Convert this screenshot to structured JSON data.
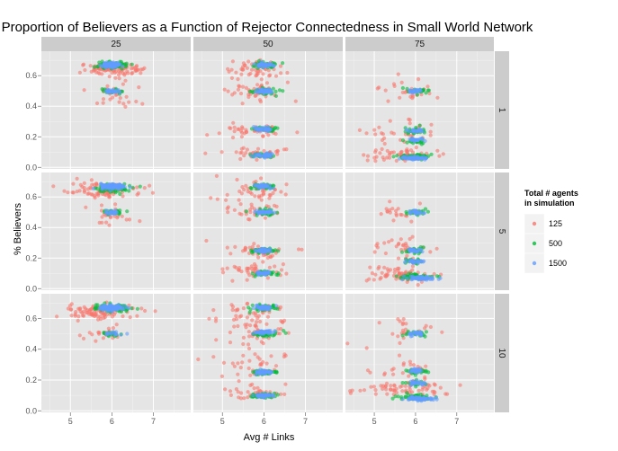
{
  "chart_data": {
    "type": "scatter",
    "title": "Proportion of Believers as a Function of Rejector Connectedness in Small World Network",
    "xlabel": "Avg # Links",
    "ylabel": "% Believers",
    "xlim": [
      4.3,
      7.9
    ],
    "ylim": [
      -0.01,
      0.76
    ],
    "x_ticks": [
      "5",
      "6",
      "7"
    ],
    "y_ticks": [
      "0.0",
      "0.2",
      "0.4",
      "0.6"
    ],
    "facet_columns": [
      "25",
      "50",
      "75"
    ],
    "facet_rows": [
      "1",
      "5",
      "10"
    ],
    "legend": {
      "title_line1": "Total # agents",
      "title_line2": "in simulation",
      "position": "right",
      "entries": [
        {
          "label": "125",
          "color": "#F8766D"
        },
        {
          "label": "500",
          "color": "#00BA38"
        },
        {
          "label": "1500",
          "color": "#619CFF"
        }
      ]
    },
    "panels": [
      {
        "col": "25",
        "row": "1",
        "clusters": [
          {
            "series": "125",
            "x": 6.0,
            "y": 0.64,
            "sx": 0.35,
            "sy": 0.02,
            "n": 90
          },
          {
            "series": "125",
            "x": 6.0,
            "y": 0.47,
            "sx": 0.25,
            "sy": 0.04,
            "n": 30
          },
          {
            "series": "500",
            "x": 6.0,
            "y": 0.67,
            "sx": 0.18,
            "sy": 0.012,
            "n": 80
          },
          {
            "series": "500",
            "x": 6.0,
            "y": 0.5,
            "sx": 0.15,
            "sy": 0.008,
            "n": 25
          },
          {
            "series": "1500",
            "x": 6.0,
            "y": 0.67,
            "sx": 0.12,
            "sy": 0.008,
            "n": 120
          },
          {
            "series": "1500",
            "x": 6.0,
            "y": 0.5,
            "sx": 0.12,
            "sy": 0.006,
            "n": 25
          }
        ]
      },
      {
        "col": "50",
        "row": "1",
        "clusters": [
          {
            "series": "125",
            "x": 5.8,
            "y": 0.64,
            "sx": 0.4,
            "sy": 0.03,
            "n": 50
          },
          {
            "series": "125",
            "x": 5.8,
            "y": 0.5,
            "sx": 0.4,
            "sy": 0.03,
            "n": 40
          },
          {
            "series": "125",
            "x": 5.8,
            "y": 0.24,
            "sx": 0.4,
            "sy": 0.02,
            "n": 40
          },
          {
            "series": "125",
            "x": 5.8,
            "y": 0.1,
            "sx": 0.4,
            "sy": 0.02,
            "n": 35
          },
          {
            "series": "500",
            "x": 6.0,
            "y": 0.67,
            "sx": 0.15,
            "sy": 0.01,
            "n": 40
          },
          {
            "series": "500",
            "x": 6.0,
            "y": 0.5,
            "sx": 0.15,
            "sy": 0.01,
            "n": 40
          },
          {
            "series": "500",
            "x": 6.0,
            "y": 0.25,
            "sx": 0.15,
            "sy": 0.008,
            "n": 40
          },
          {
            "series": "500",
            "x": 6.0,
            "y": 0.08,
            "sx": 0.15,
            "sy": 0.008,
            "n": 35
          },
          {
            "series": "1500",
            "x": 6.0,
            "y": 0.67,
            "sx": 0.1,
            "sy": 0.006,
            "n": 50
          },
          {
            "series": "1500",
            "x": 6.0,
            "y": 0.5,
            "sx": 0.1,
            "sy": 0.006,
            "n": 45
          },
          {
            "series": "1500",
            "x": 6.0,
            "y": 0.25,
            "sx": 0.1,
            "sy": 0.006,
            "n": 45
          },
          {
            "series": "1500",
            "x": 6.0,
            "y": 0.08,
            "sx": 0.1,
            "sy": 0.006,
            "n": 40
          }
        ]
      },
      {
        "col": "75",
        "row": "1",
        "clusters": [
          {
            "series": "125",
            "x": 5.7,
            "y": 0.5,
            "sx": 0.4,
            "sy": 0.04,
            "n": 25
          },
          {
            "series": "125",
            "x": 5.7,
            "y": 0.22,
            "sx": 0.4,
            "sy": 0.04,
            "n": 30
          },
          {
            "series": "125",
            "x": 5.7,
            "y": 0.08,
            "sx": 0.45,
            "sy": 0.02,
            "n": 50
          },
          {
            "series": "500",
            "x": 6.0,
            "y": 0.5,
            "sx": 0.15,
            "sy": 0.01,
            "n": 20
          },
          {
            "series": "500",
            "x": 6.0,
            "y": 0.24,
            "sx": 0.15,
            "sy": 0.01,
            "n": 25
          },
          {
            "series": "500",
            "x": 6.0,
            "y": 0.17,
            "sx": 0.15,
            "sy": 0.01,
            "n": 20
          },
          {
            "series": "500",
            "x": 6.0,
            "y": 0.07,
            "sx": 0.2,
            "sy": 0.008,
            "n": 50
          },
          {
            "series": "1500",
            "x": 6.0,
            "y": 0.5,
            "sx": 0.1,
            "sy": 0.006,
            "n": 25
          },
          {
            "series": "1500",
            "x": 6.0,
            "y": 0.24,
            "sx": 0.1,
            "sy": 0.006,
            "n": 25
          },
          {
            "series": "1500",
            "x": 6.0,
            "y": 0.18,
            "sx": 0.1,
            "sy": 0.006,
            "n": 25
          },
          {
            "series": "1500",
            "x": 6.0,
            "y": 0.06,
            "sx": 0.15,
            "sy": 0.005,
            "n": 70
          }
        ]
      },
      {
        "col": "25",
        "row": "5",
        "clusters": [
          {
            "series": "125",
            "x": 5.8,
            "y": 0.64,
            "sx": 0.4,
            "sy": 0.025,
            "n": 90
          },
          {
            "series": "125",
            "x": 6.0,
            "y": 0.48,
            "sx": 0.3,
            "sy": 0.03,
            "n": 25
          },
          {
            "series": "500",
            "x": 6.0,
            "y": 0.66,
            "sx": 0.2,
            "sy": 0.012,
            "n": 80
          },
          {
            "series": "500",
            "x": 6.0,
            "y": 0.5,
            "sx": 0.15,
            "sy": 0.008,
            "n": 25
          },
          {
            "series": "1500",
            "x": 6.0,
            "y": 0.67,
            "sx": 0.14,
            "sy": 0.008,
            "n": 120
          },
          {
            "series": "1500",
            "x": 6.0,
            "y": 0.5,
            "sx": 0.1,
            "sy": 0.006,
            "n": 20
          }
        ]
      },
      {
        "col": "50",
        "row": "5",
        "clusters": [
          {
            "series": "125",
            "x": 5.8,
            "y": 0.64,
            "sx": 0.4,
            "sy": 0.03,
            "n": 45
          },
          {
            "series": "125",
            "x": 5.8,
            "y": 0.5,
            "sx": 0.35,
            "sy": 0.03,
            "n": 30
          },
          {
            "series": "125",
            "x": 5.8,
            "y": 0.25,
            "sx": 0.45,
            "sy": 0.03,
            "n": 40
          },
          {
            "series": "125",
            "x": 5.8,
            "y": 0.12,
            "sx": 0.45,
            "sy": 0.03,
            "n": 40
          },
          {
            "series": "500",
            "x": 6.0,
            "y": 0.67,
            "sx": 0.15,
            "sy": 0.01,
            "n": 40
          },
          {
            "series": "500",
            "x": 6.0,
            "y": 0.5,
            "sx": 0.15,
            "sy": 0.01,
            "n": 40
          },
          {
            "series": "500",
            "x": 6.0,
            "y": 0.25,
            "sx": 0.15,
            "sy": 0.008,
            "n": 40
          },
          {
            "series": "500",
            "x": 6.0,
            "y": 0.1,
            "sx": 0.15,
            "sy": 0.008,
            "n": 40
          },
          {
            "series": "1500",
            "x": 6.0,
            "y": 0.67,
            "sx": 0.1,
            "sy": 0.006,
            "n": 50
          },
          {
            "series": "1500",
            "x": 6.0,
            "y": 0.5,
            "sx": 0.1,
            "sy": 0.006,
            "n": 45
          },
          {
            "series": "1500",
            "x": 6.0,
            "y": 0.25,
            "sx": 0.1,
            "sy": 0.006,
            "n": 45
          },
          {
            "series": "1500",
            "x": 6.0,
            "y": 0.1,
            "sx": 0.1,
            "sy": 0.006,
            "n": 40
          }
        ]
      },
      {
        "col": "75",
        "row": "5",
        "clusters": [
          {
            "series": "125",
            "x": 5.7,
            "y": 0.5,
            "sx": 0.35,
            "sy": 0.03,
            "n": 20
          },
          {
            "series": "125",
            "x": 5.7,
            "y": 0.28,
            "sx": 0.4,
            "sy": 0.04,
            "n": 30
          },
          {
            "series": "125",
            "x": 5.6,
            "y": 0.1,
            "sx": 0.4,
            "sy": 0.03,
            "n": 60
          },
          {
            "series": "500",
            "x": 6.0,
            "y": 0.5,
            "sx": 0.15,
            "sy": 0.01,
            "n": 20
          },
          {
            "series": "500",
            "x": 6.0,
            "y": 0.25,
            "sx": 0.15,
            "sy": 0.01,
            "n": 25
          },
          {
            "series": "500",
            "x": 6.0,
            "y": 0.18,
            "sx": 0.15,
            "sy": 0.01,
            "n": 20
          },
          {
            "series": "500",
            "x": 6.0,
            "y": 0.08,
            "sx": 0.2,
            "sy": 0.008,
            "n": 50
          },
          {
            "series": "1500",
            "x": 6.0,
            "y": 0.5,
            "sx": 0.1,
            "sy": 0.006,
            "n": 25
          },
          {
            "series": "1500",
            "x": 6.0,
            "y": 0.25,
            "sx": 0.1,
            "sy": 0.006,
            "n": 25
          },
          {
            "series": "1500",
            "x": 6.0,
            "y": 0.18,
            "sx": 0.1,
            "sy": 0.006,
            "n": 25
          },
          {
            "series": "1500",
            "x": 6.1,
            "y": 0.07,
            "sx": 0.15,
            "sy": 0.006,
            "n": 70
          }
        ]
      },
      {
        "col": "25",
        "row": "10",
        "clusters": [
          {
            "series": "125",
            "x": 5.7,
            "y": 0.64,
            "sx": 0.45,
            "sy": 0.025,
            "n": 90
          },
          {
            "series": "125",
            "x": 5.8,
            "y": 0.5,
            "sx": 0.3,
            "sy": 0.03,
            "n": 20
          },
          {
            "series": "500",
            "x": 6.0,
            "y": 0.67,
            "sx": 0.2,
            "sy": 0.012,
            "n": 80
          },
          {
            "series": "500",
            "x": 6.0,
            "y": 0.5,
            "sx": 0.12,
            "sy": 0.008,
            "n": 20
          },
          {
            "series": "1500",
            "x": 6.0,
            "y": 0.67,
            "sx": 0.15,
            "sy": 0.008,
            "n": 120
          },
          {
            "series": "1500",
            "x": 6.0,
            "y": 0.5,
            "sx": 0.1,
            "sy": 0.006,
            "n": 15
          }
        ]
      },
      {
        "col": "50",
        "row": "10",
        "clusters": [
          {
            "series": "125",
            "x": 5.7,
            "y": 0.63,
            "sx": 0.45,
            "sy": 0.04,
            "n": 45
          },
          {
            "series": "125",
            "x": 5.7,
            "y": 0.5,
            "sx": 0.4,
            "sy": 0.04,
            "n": 35
          },
          {
            "series": "125",
            "x": 5.8,
            "y": 0.3,
            "sx": 0.4,
            "sy": 0.04,
            "n": 35
          },
          {
            "series": "125",
            "x": 5.8,
            "y": 0.12,
            "sx": 0.4,
            "sy": 0.03,
            "n": 30
          },
          {
            "series": "500",
            "x": 6.0,
            "y": 0.67,
            "sx": 0.15,
            "sy": 0.01,
            "n": 40
          },
          {
            "series": "500",
            "x": 6.0,
            "y": 0.5,
            "sx": 0.15,
            "sy": 0.01,
            "n": 40
          },
          {
            "series": "500",
            "x": 6.0,
            "y": 0.25,
            "sx": 0.15,
            "sy": 0.008,
            "n": 40
          },
          {
            "series": "500",
            "x": 6.0,
            "y": 0.1,
            "sx": 0.15,
            "sy": 0.008,
            "n": 40
          },
          {
            "series": "1500",
            "x": 6.0,
            "y": 0.67,
            "sx": 0.1,
            "sy": 0.006,
            "n": 50
          },
          {
            "series": "1500",
            "x": 6.0,
            "y": 0.51,
            "sx": 0.1,
            "sy": 0.006,
            "n": 45
          },
          {
            "series": "1500",
            "x": 6.0,
            "y": 0.25,
            "sx": 0.1,
            "sy": 0.006,
            "n": 45
          },
          {
            "series": "1500",
            "x": 6.0,
            "y": 0.1,
            "sx": 0.1,
            "sy": 0.006,
            "n": 40
          }
        ]
      },
      {
        "col": "75",
        "row": "10",
        "clusters": [
          {
            "series": "125",
            "x": 5.6,
            "y": 0.5,
            "sx": 0.4,
            "sy": 0.04,
            "n": 25
          },
          {
            "series": "125",
            "x": 5.7,
            "y": 0.27,
            "sx": 0.4,
            "sy": 0.04,
            "n": 30
          },
          {
            "series": "125",
            "x": 5.8,
            "y": 0.14,
            "sx": 0.5,
            "sy": 0.02,
            "n": 60
          },
          {
            "series": "500",
            "x": 6.0,
            "y": 0.5,
            "sx": 0.15,
            "sy": 0.01,
            "n": 20
          },
          {
            "series": "500",
            "x": 6.0,
            "y": 0.26,
            "sx": 0.15,
            "sy": 0.01,
            "n": 25
          },
          {
            "series": "500",
            "x": 6.0,
            "y": 0.18,
            "sx": 0.15,
            "sy": 0.01,
            "n": 20
          },
          {
            "series": "500",
            "x": 6.0,
            "y": 0.09,
            "sx": 0.2,
            "sy": 0.008,
            "n": 50
          },
          {
            "series": "1500",
            "x": 6.0,
            "y": 0.5,
            "sx": 0.1,
            "sy": 0.006,
            "n": 25
          },
          {
            "series": "1500",
            "x": 6.0,
            "y": 0.26,
            "sx": 0.1,
            "sy": 0.006,
            "n": 25
          },
          {
            "series": "1500",
            "x": 6.0,
            "y": 0.18,
            "sx": 0.1,
            "sy": 0.006,
            "n": 25
          },
          {
            "series": "1500",
            "x": 6.1,
            "y": 0.08,
            "sx": 0.15,
            "sy": 0.006,
            "n": 70
          }
        ]
      }
    ]
  }
}
